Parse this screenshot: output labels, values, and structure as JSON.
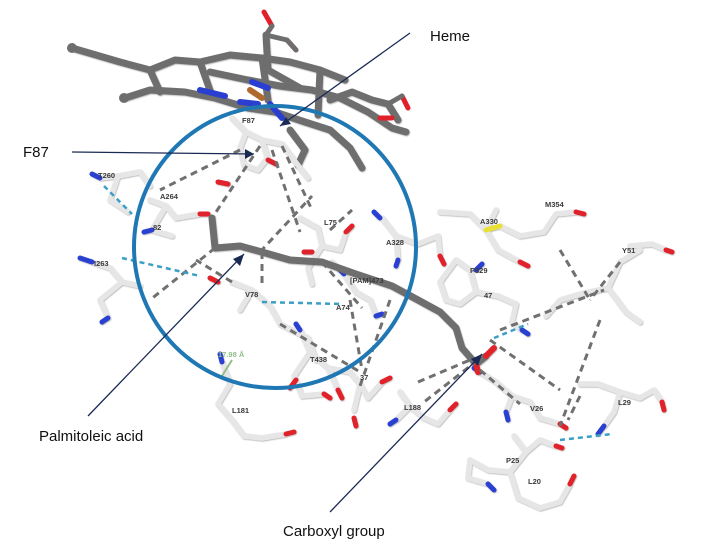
{
  "callouts": {
    "heme": "Heme",
    "f87": "F87",
    "palmitoleic": "Palmitoleic acid",
    "carboxyl": "Carboxyl group"
  },
  "residues": {
    "f87": "F87",
    "t260": "T260",
    "a264": "A264",
    "i263": "I263",
    "r82": "82",
    "l75": "L75",
    "a328": "A328",
    "a330": "A330",
    "m354": "M354",
    "y51": "Y51",
    "pam": "[PAM]473",
    "v78": "V78",
    "a74": "A74",
    "p329": "P329",
    "r47": "47",
    "t438": "T438",
    "r37": "37",
    "l181": "L181",
    "l188": "L188",
    "v26": "V26",
    "l29": "L29",
    "p25": "P25",
    "l20": "L20"
  },
  "distance_label": "17.98 Å",
  "colors": {
    "highlight_circle": "#1f77b4",
    "callout_line": "#1a2a55",
    "carbon_light": "#e6e6e6",
    "carbon_dark": "#6e6e6e",
    "oxygen": "#e0202a",
    "nitrogen": "#2a3fd0",
    "sulfur": "#e8e030",
    "iron": "#b06a30",
    "hbond": "#3b9fc4",
    "contact": "#707070"
  }
}
